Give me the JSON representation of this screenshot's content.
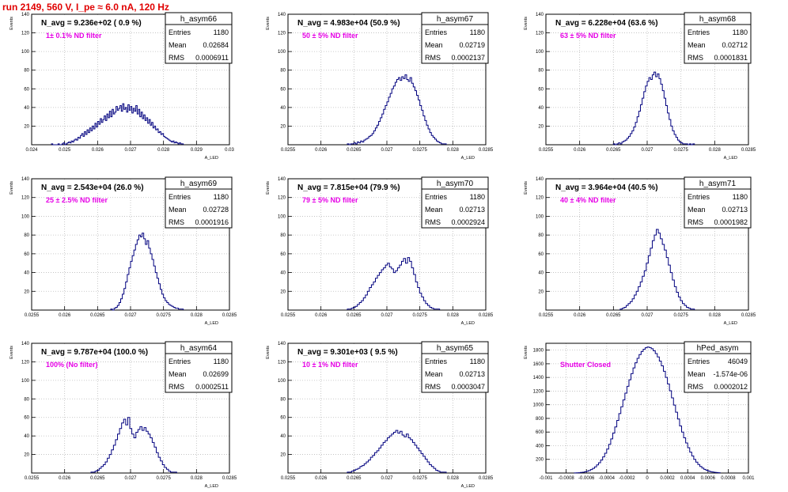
{
  "page": {
    "run_title": "run 2149,   560 V, I_pe ≈ 6.0 nA, 120 Hz",
    "colors": {
      "histogram": "#00007f",
      "title_red": "#e00000",
      "label_magenta": "#e600e6",
      "grid": "#bbbbbb"
    }
  },
  "chart_data": [
    {
      "type": "bar",
      "name": "h_asym66",
      "title": "N_avg = 9.236e+02 ( 0.9 %)",
      "label": "1± 0.1% ND filter",
      "stats": {
        "entries": "1180",
        "mean": "0.02684",
        "rms": "0.0006911"
      },
      "xlim": [
        0.024,
        0.03
      ],
      "ylim": [
        0,
        140
      ],
      "xticks": [
        0.024,
        0.025,
        0.026,
        0.027,
        0.028,
        0.029,
        0.03
      ],
      "xtick_labels": [
        "0.024",
        "0.025",
        "0.026",
        "0.027",
        "0.028",
        "0.029",
        "0.03"
      ],
      "yticks": [
        20,
        40,
        60,
        80,
        100,
        120,
        140
      ],
      "ytick_labels": [
        "20",
        "40",
        "60",
        "80",
        "100",
        "120",
        "140"
      ],
      "xlabel": "A_LED",
      "ylabel": "Events",
      "bins_edges": [
        0.0246,
        0.0286
      ],
      "values": [
        1,
        0,
        0,
        0,
        0,
        1,
        0,
        0,
        1,
        2,
        0,
        1,
        2,
        3,
        2,
        4,
        3,
        5,
        6,
        5,
        8,
        7,
        10,
        12,
        9,
        14,
        11,
        16,
        13,
        18,
        15,
        20,
        17,
        23,
        19,
        25,
        22,
        28,
        24,
        27,
        31,
        26,
        33,
        29,
        36,
        30,
        38,
        33,
        35,
        41,
        37,
        39,
        42,
        36,
        44,
        38,
        40,
        35,
        43,
        37,
        41,
        34,
        39,
        36,
        42,
        33,
        38,
        30,
        35,
        28,
        32,
        26,
        29,
        23,
        27,
        21,
        24,
        18,
        20,
        16,
        17,
        13,
        14,
        11,
        12,
        9,
        8,
        7,
        6,
        5,
        4,
        3,
        4,
        2,
        3,
        2,
        1,
        2,
        1,
        1
      ]
    },
    {
      "type": "bar",
      "name": "h_asym67",
      "title": "N_avg = 4.983e+04 (50.9 %)",
      "label": "50 ± 5% ND filter",
      "stats": {
        "entries": "1180",
        "mean": "0.02719",
        "rms": "0.0002137"
      },
      "xlim": [
        0.0255,
        0.0285
      ],
      "ylim": [
        0,
        140
      ],
      "xticks": [
        0.0255,
        0.026,
        0.0265,
        0.027,
        0.0275,
        0.028,
        0.0285
      ],
      "xtick_labels": [
        "0.0255",
        "0.026",
        "0.0265",
        "0.027",
        "0.0275",
        "0.028",
        "0.0285"
      ],
      "yticks": [
        20,
        40,
        60,
        80,
        100,
        120,
        140
      ],
      "ytick_labels": [
        "20",
        "40",
        "60",
        "80",
        "100",
        "120",
        "140"
      ],
      "xlabel": "A_LED",
      "ylabel": "Events",
      "bins_edges": [
        0.0264,
        0.0279
      ],
      "values": [
        1,
        0,
        1,
        1,
        2,
        1,
        3,
        2,
        4,
        3,
        5,
        6,
        7,
        9,
        10,
        12,
        15,
        18,
        21,
        25,
        29,
        33,
        38,
        42,
        46,
        51,
        55,
        60,
        63,
        67,
        70,
        72,
        69,
        73,
        71,
        75,
        70,
        68,
        72,
        66,
        62,
        58,
        53,
        48,
        42,
        37,
        31,
        26,
        21,
        17,
        13,
        10,
        8,
        6,
        4,
        3,
        2,
        1,
        1,
        1
      ]
    },
    {
      "type": "bar",
      "name": "h_asym68",
      "title": "N_avg = 6.228e+04 (63.6 %)",
      "label": "63 ± 5% ND filter",
      "stats": {
        "entries": "1180",
        "mean": "0.02712",
        "rms": "0.0001831"
      },
      "xlim": [
        0.0255,
        0.0285
      ],
      "ylim": [
        0,
        140
      ],
      "xticks": [
        0.0255,
        0.026,
        0.0265,
        0.027,
        0.0275,
        0.028,
        0.0285
      ],
      "xtick_labels": [
        "0.0255",
        "0.026",
        "0.0265",
        "0.027",
        "0.0275",
        "0.028",
        "0.0285"
      ],
      "yticks": [
        20,
        40,
        60,
        80,
        100,
        120,
        140
      ],
      "ytick_labels": [
        "20",
        "40",
        "60",
        "80",
        "100",
        "120",
        "140"
      ],
      "xlabel": "A_LED",
      "ylabel": "Events",
      "bins_edges": [
        0.0265,
        0.0277
      ],
      "values": [
        1,
        0,
        1,
        2,
        1,
        3,
        4,
        5,
        7,
        9,
        12,
        15,
        19,
        24,
        30,
        36,
        43,
        50,
        57,
        63,
        68,
        72,
        70,
        75,
        78,
        73,
        76,
        71,
        65,
        58,
        50,
        42,
        34,
        27,
        20,
        15,
        11,
        8,
        5,
        3,
        2,
        1,
        1,
        1,
        0,
        1,
        0,
        1
      ]
    },
    {
      "type": "bar",
      "name": "h_asym69",
      "title": "N_avg = 2.543e+04 (26.0 %)",
      "label": "25 ± 2.5% ND filter",
      "stats": {
        "entries": "1180",
        "mean": "0.02728",
        "rms": "0.0001916"
      },
      "xlim": [
        0.0255,
        0.0285
      ],
      "ylim": [
        0,
        140
      ],
      "xticks": [
        0.0255,
        0.026,
        0.0265,
        0.027,
        0.0275,
        0.028,
        0.0285
      ],
      "xtick_labels": [
        "0.0255",
        "0.026",
        "0.0265",
        "0.027",
        "0.0275",
        "0.028",
        "0.0285"
      ],
      "yticks": [
        20,
        40,
        60,
        80,
        100,
        120,
        140
      ],
      "ytick_labels": [
        "20",
        "40",
        "60",
        "80",
        "100",
        "120",
        "140"
      ],
      "xlabel": "A_LED",
      "ylabel": "Events",
      "bins_edges": [
        0.0267,
        0.0278
      ],
      "values": [
        1,
        0,
        2,
        3,
        5,
        8,
        12,
        17,
        23,
        30,
        38,
        45,
        52,
        58,
        64,
        70,
        75,
        80,
        78,
        82,
        76,
        70,
        74,
        66,
        60,
        54,
        47,
        40,
        34,
        28,
        22,
        17,
        13,
        10,
        8,
        6,
        5,
        4,
        3,
        2,
        2,
        1,
        1,
        1
      ]
    },
    {
      "type": "bar",
      "name": "h_asym70",
      "title": "N_avg = 7.815e+04 (79.9 %)",
      "label": "79 ± 5% ND filter",
      "stats": {
        "entries": "1180",
        "mean": "0.02713",
        "rms": "0.0002924"
      },
      "xlim": [
        0.0255,
        0.0285
      ],
      "ylim": [
        0,
        140
      ],
      "xticks": [
        0.0255,
        0.026,
        0.0265,
        0.027,
        0.0275,
        0.028,
        0.0285
      ],
      "xtick_labels": [
        "0.0255",
        "0.026",
        "0.0265",
        "0.027",
        "0.0275",
        "0.028",
        "0.0285"
      ],
      "yticks": [
        20,
        40,
        60,
        80,
        100,
        120,
        140
      ],
      "ytick_labels": [
        "20",
        "40",
        "60",
        "80",
        "100",
        "120",
        "140"
      ],
      "xlabel": "A_LED",
      "ylabel": "Events",
      "bins_edges": [
        0.0264,
        0.0278
      ],
      "values": [
        1,
        1,
        2,
        3,
        4,
        6,
        8,
        10,
        13,
        16,
        20,
        24,
        27,
        30,
        34,
        37,
        40,
        43,
        45,
        48,
        50,
        46,
        44,
        40,
        42,
        45,
        48,
        52,
        55,
        50,
        56,
        52,
        45,
        38,
        30,
        24,
        18,
        14,
        10,
        7,
        5,
        3,
        2,
        1,
        1,
        1
      ]
    },
    {
      "type": "bar",
      "name": "h_asym71",
      "title": "N_avg = 3.964e+04 (40.5 %)",
      "label": "40 ± 4% ND filter",
      "stats": {
        "entries": "1180",
        "mean": "0.02713",
        "rms": "0.0001982"
      },
      "xlim": [
        0.0255,
        0.0285
      ],
      "ylim": [
        0,
        140
      ],
      "xticks": [
        0.0255,
        0.026,
        0.0265,
        0.027,
        0.0275,
        0.028,
        0.0285
      ],
      "xtick_labels": [
        "0.0255",
        "0.026",
        "0.0265",
        "0.027",
        "0.0275",
        "0.028",
        "0.0285"
      ],
      "yticks": [
        20,
        40,
        60,
        80,
        100,
        120,
        140
      ],
      "ytick_labels": [
        "20",
        "40",
        "60",
        "80",
        "100",
        "120",
        "140"
      ],
      "xlabel": "A_LED",
      "ylabel": "Events",
      "bins_edges": [
        0.0266,
        0.0277
      ],
      "values": [
        1,
        2,
        3,
        5,
        7,
        9,
        12,
        16,
        20,
        25,
        30,
        36,
        42,
        50,
        58,
        66,
        74,
        80,
        86,
        82,
        76,
        70,
        64,
        56,
        48,
        40,
        32,
        25,
        19,
        14,
        10,
        7,
        5,
        3,
        2,
        1,
        1
      ]
    },
    {
      "type": "bar",
      "name": "h_asym64",
      "title": "N_avg = 9.787e+04 (100.0 %)",
      "label": "100% (No filter)",
      "stats": {
        "entries": "1180",
        "mean": "0.02699",
        "rms": "0.0002511"
      },
      "xlim": [
        0.0255,
        0.0285
      ],
      "ylim": [
        0,
        140
      ],
      "xticks": [
        0.0255,
        0.026,
        0.0265,
        0.027,
        0.0275,
        0.028,
        0.0285
      ],
      "xtick_labels": [
        "0.0255",
        "0.026",
        "0.0265",
        "0.027",
        "0.0275",
        "0.028",
        "0.0285"
      ],
      "yticks": [
        20,
        40,
        60,
        80,
        100,
        120,
        140
      ],
      "ytick_labels": [
        "20",
        "40",
        "60",
        "80",
        "100",
        "120",
        "140"
      ],
      "xlabel": "A_LED",
      "ylabel": "Events",
      "bins_edges": [
        0.0264,
        0.0277
      ],
      "values": [
        1,
        1,
        2,
        3,
        5,
        7,
        9,
        12,
        16,
        20,
        25,
        30,
        36,
        42,
        48,
        54,
        58,
        52,
        60,
        48,
        42,
        38,
        44,
        47,
        50,
        46,
        49,
        45,
        42,
        38,
        33,
        28,
        22,
        17,
        13,
        9,
        6,
        4,
        2,
        1,
        1,
        1
      ]
    },
    {
      "type": "bar",
      "name": "h_asym65",
      "title": "N_avg = 9.301e+03 ( 9.5 %)",
      "label": "10 ± 1% ND filter",
      "stats": {
        "entries": "1180",
        "mean": "0.02713",
        "rms": "0.0003047"
      },
      "xlim": [
        0.0255,
        0.0285
      ],
      "ylim": [
        0,
        140
      ],
      "xticks": [
        0.0255,
        0.026,
        0.0265,
        0.027,
        0.0275,
        0.028,
        0.0285
      ],
      "xtick_labels": [
        "0.0255",
        "0.026",
        "0.0265",
        "0.027",
        "0.0275",
        "0.028",
        "0.0285"
      ],
      "yticks": [
        20,
        40,
        60,
        80,
        100,
        120,
        140
      ],
      "ytick_labels": [
        "20",
        "40",
        "60",
        "80",
        "100",
        "120",
        "140"
      ],
      "xlabel": "A_LED",
      "ylabel": "Events",
      "bins_edges": [
        0.0264,
        0.0279
      ],
      "values": [
        1,
        1,
        2,
        3,
        4,
        5,
        7,
        8,
        10,
        12,
        14,
        17,
        19,
        22,
        24,
        27,
        30,
        33,
        35,
        38,
        40,
        42,
        44,
        46,
        43,
        45,
        41,
        39,
        42,
        38,
        36,
        33,
        30,
        27,
        24,
        21,
        18,
        15,
        12,
        9,
        7,
        5,
        3,
        2,
        1,
        1,
        1
      ]
    },
    {
      "type": "bar",
      "name": "hPed_asym",
      "title": "",
      "label": "Shutter Closed",
      "stats": {
        "entries": "46049",
        "mean": "-1.574e-06",
        "rms": "0.0002012"
      },
      "xlim": [
        -0.001,
        0.001
      ],
      "ylim": [
        0,
        1900
      ],
      "xticks": [
        -0.001,
        -0.0008,
        -0.0006,
        -0.0004,
        -0.0002,
        0,
        0.0002,
        0.0004,
        0.0006,
        0.0008,
        0.001
      ],
      "xtick_labels": [
        "-0.001",
        "-0.0008",
        "-0.0006",
        "-0.0004",
        "-0.0002",
        "0",
        "0.0002",
        "0.0004",
        "0.0006",
        "0.0008",
        "0.001"
      ],
      "yticks": [
        200,
        400,
        600,
        800,
        1000,
        1200,
        1400,
        1600,
        1800
      ],
      "ytick_labels": [
        "200",
        "400",
        "600",
        "800",
        "1000",
        "1200",
        "1400",
        "1600",
        "1800"
      ],
      "xlabel": "",
      "ylabel": "Events",
      "bins_edges": [
        -0.00072,
        0.00072
      ],
      "values": [
        2,
        3,
        5,
        8,
        12,
        18,
        26,
        36,
        50,
        68,
        90,
        118,
        150,
        190,
        236,
        290,
        350,
        420,
        500,
        585,
        675,
        770,
        870,
        970,
        1070,
        1170,
        1270,
        1365,
        1455,
        1540,
        1615,
        1680,
        1735,
        1780,
        1812,
        1835,
        1845,
        1838,
        1820,
        1790,
        1750,
        1700,
        1640,
        1570,
        1490,
        1400,
        1305,
        1205,
        1100,
        995,
        890,
        790,
        690,
        600,
        515,
        440,
        370,
        305,
        250,
        200,
        160,
        125,
        96,
        72,
        54,
        40,
        29,
        20,
        14,
        10,
        7,
        5
      ]
    }
  ]
}
